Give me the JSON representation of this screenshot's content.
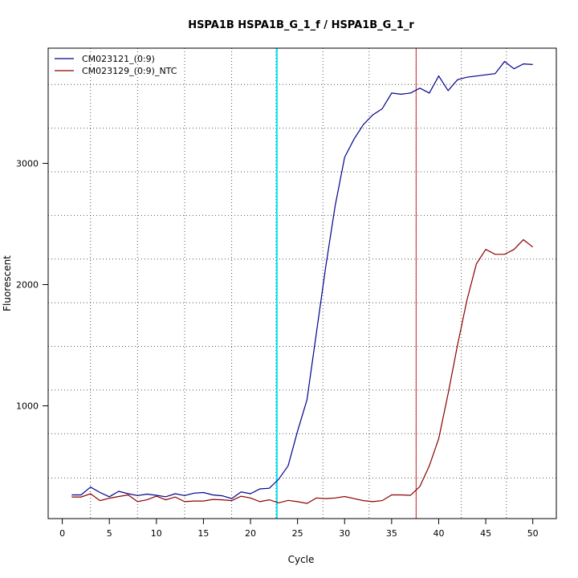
{
  "chart_data": {
    "type": "line",
    "title": "HSPA1B  HSPA1B_G_1_f / HSPA1B_G_1_r",
    "xlabel": "Cycle",
    "ylabel": "Fluorescent",
    "xlim": [
      -1.5,
      52.5
    ],
    "ylim": [
      70,
      3950
    ],
    "xticks": [
      0,
      5,
      10,
      15,
      20,
      25,
      30,
      35,
      40,
      45,
      50
    ],
    "yticks": [
      1000,
      2000,
      3000
    ],
    "grid": "dotted",
    "legend_position": "top-left",
    "vertical_grid_x": [
      3,
      8,
      13,
      18,
      22.7,
      27.7,
      32.6,
      37.6,
      42.4,
      47.2
    ],
    "horizontal_grid_y": [
      405,
      770,
      1130,
      1490,
      1850,
      2210,
      2570,
      2930,
      3290,
      3650
    ],
    "threshold_lines": [
      {
        "x": 22.8,
        "color": "#00e5ee"
      },
      {
        "x": 37.6,
        "color": "#cd2626"
      }
    ],
    "series": [
      {
        "name": "CM023121_(0:9)",
        "color": "#00008b",
        "x": [
          1,
          2,
          3,
          4,
          5,
          6,
          7,
          8,
          9,
          10,
          11,
          12,
          13,
          14,
          15,
          16,
          17,
          18,
          19,
          20,
          21,
          22,
          23,
          24,
          25,
          26,
          27,
          28,
          29,
          30,
          31,
          32,
          33,
          34,
          35,
          36,
          37,
          38,
          39,
          40,
          41,
          42,
          43,
          44,
          45,
          46,
          47,
          48,
          49,
          50
        ],
        "y": [
          265,
          265,
          330,
          285,
          250,
          295,
          275,
          260,
          272,
          262,
          250,
          275,
          260,
          280,
          285,
          265,
          258,
          235,
          290,
          275,
          315,
          320,
          395,
          505,
          790,
          1050,
          1600,
          2150,
          2650,
          3050,
          3200,
          3320,
          3400,
          3450,
          3580,
          3570,
          3580,
          3620,
          3580,
          3720,
          3600,
          3690,
          3710,
          3720,
          3730,
          3740,
          3840,
          3780,
          3820,
          3815
        ]
      },
      {
        "name": "CM023129_(0:9)_NTC",
        "color": "#8b0000",
        "x": [
          1,
          2,
          3,
          4,
          5,
          6,
          7,
          8,
          9,
          10,
          11,
          12,
          13,
          14,
          15,
          16,
          17,
          18,
          19,
          20,
          21,
          22,
          23,
          24,
          25,
          26,
          27,
          28,
          29,
          30,
          31,
          32,
          33,
          34,
          35,
          36,
          37,
          38,
          39,
          40,
          41,
          42,
          43,
          44,
          45,
          46,
          47,
          48,
          49,
          50
        ],
        "y": [
          248,
          248,
          275,
          218,
          238,
          252,
          265,
          210,
          225,
          255,
          225,
          248,
          210,
          215,
          215,
          228,
          225,
          218,
          255,
          240,
          210,
          225,
          200,
          220,
          210,
          195,
          240,
          235,
          240,
          252,
          235,
          218,
          210,
          218,
          265,
          265,
          262,
          335,
          505,
          730,
          1100,
          1500,
          1870,
          2170,
          2290,
          2250,
          2250,
          2290,
          2370,
          2310
        ]
      }
    ]
  }
}
